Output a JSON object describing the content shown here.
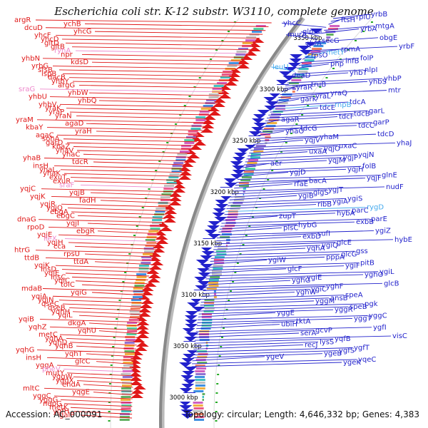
{
  "title": "Escherichia coli str. K-12 substr. W3110, complete genome",
  "accession_label": "Accession:",
  "accession": "AC_000091",
  "topology_label": "Topology:",
  "topology": "circular",
  "length_label": "Length:",
  "length": "4,646,332 bp",
  "genes_label": "Genes:",
  "genes": "4,383",
  "colors": {
    "forward": "#2222cc",
    "reverse": "#e01818",
    "forward_rna": "#44aaee",
    "reverse_rna": "#ee88cc",
    "backbone": "#888888",
    "tick": "#22aa22"
  },
  "scale_labels": [
    {
      "text": "3350 kbp"
    },
    {
      "text": "3300 kbp"
    },
    {
      "text": "3250 kbp"
    },
    {
      "text": "3200 kbp"
    },
    {
      "text": "3150 kbp"
    },
    {
      "text": "3100 kbp"
    },
    {
      "text": "3050 kbp"
    },
    {
      "text": "3000 kbp"
    }
  ],
  "reverse_labels": [
    {
      "text": "argR"
    },
    {
      "text": "ychB"
    },
    {
      "text": "dcuD"
    },
    {
      "text": "yhcG"
    },
    {
      "text": "yhcF"
    },
    {
      "text": "yhcD"
    },
    {
      "text": "gltD"
    },
    {
      "text": "gltB"
    },
    {
      "text": "ryhA"
    },
    {
      "text": "npr"
    },
    {
      "text": "yhbN"
    },
    {
      "text": "kdsD"
    },
    {
      "text": "yrbG"
    },
    {
      "text": "sfsB"
    },
    {
      "text": "ispB"
    },
    {
      "text": "dacB"
    },
    {
      "text": "yhbY"
    },
    {
      "text": "argG"
    },
    {
      "text": "sraG"
    },
    {
      "text": "yhbW"
    },
    {
      "text": "yhbU"
    },
    {
      "text": "yhbQ"
    },
    {
      "text": "yhbV"
    },
    {
      "text": "yraK"
    },
    {
      "text": "yraP"
    },
    {
      "text": "yraN"
    },
    {
      "text": "yraM"
    },
    {
      "text": "agaD"
    },
    {
      "text": "kbaY"
    },
    {
      "text": "yraH"
    },
    {
      "text": "agaC"
    },
    {
      "text": "sohA"
    },
    {
      "text": "garD"
    },
    {
      "text": "kbaZ"
    },
    {
      "text": "yhaV"
    },
    {
      "text": "yhaC"
    },
    {
      "text": "yhaB"
    },
    {
      "text": "tdcR"
    },
    {
      "text": "insH"
    },
    {
      "text": "yhaL"
    },
    {
      "text": "yhaK"
    },
    {
      "text": "exuT"
    },
    {
      "text": "exuR"
    },
    {
      "text": "sraF"
    },
    {
      "text": "yqjC"
    },
    {
      "text": "yqjB"
    },
    {
      "text": "yqjK"
    },
    {
      "text": "fadH"
    },
    {
      "text": "yqjR"
    },
    {
      "text": "yqjQ"
    },
    {
      "text": "ebgA"
    },
    {
      "text": "ebgC"
    },
    {
      "text": "dnaG"
    },
    {
      "text": "yqjI"
    },
    {
      "text": "rpoD"
    },
    {
      "text": "ebgR"
    },
    {
      "text": "yqjE"
    },
    {
      "text": "ileX"
    },
    {
      "text": "yqjH"
    },
    {
      "text": "cca"
    },
    {
      "text": "htrG"
    },
    {
      "text": "rpsU"
    },
    {
      "text": "ttdB"
    },
    {
      "text": "ttdA"
    },
    {
      "text": "yqiK"
    },
    {
      "text": "insD"
    },
    {
      "text": "yqiE"
    },
    {
      "text": "insC"
    },
    {
      "text": "yqiC"
    },
    {
      "text": "tolC"
    },
    {
      "text": "mdaB"
    },
    {
      "text": "yqiG"
    },
    {
      "text": "yqiA"
    },
    {
      "text": "yqiN"
    },
    {
      "text": "qseC"
    },
    {
      "text": "qseB"
    },
    {
      "text": "yqhH"
    },
    {
      "text": "yqiL"
    },
    {
      "text": "yqiB"
    },
    {
      "text": "dkgA"
    },
    {
      "text": "yqhZ"
    },
    {
      "text": "yqhU"
    },
    {
      "text": "metC"
    },
    {
      "text": "yqhA"
    },
    {
      "text": "yqhD"
    },
    {
      "text": "yqhB"
    },
    {
      "text": "yqhG"
    },
    {
      "text": "yqhT"
    },
    {
      "text": "insH"
    },
    {
      "text": "glcC"
    },
    {
      "text": "yggA"
    },
    {
      "text": "pheV"
    },
    {
      "text": "mutY"
    },
    {
      "text": "yggW"
    },
    {
      "text": "yggX"
    },
    {
      "text": "endA"
    },
    {
      "text": "mltC"
    },
    {
      "text": "yqgE"
    },
    {
      "text": "yggC"
    },
    {
      "text": "yggG"
    },
    {
      "text": "nupG"
    },
    {
      "text": "metK"
    },
    {
      "text": "ygfH"
    },
    {
      "text": "galP"
    }
  ],
  "forward_labels": [
    {
      "text": "yrbB"
    },
    {
      "text": "rplU"
    },
    {
      "text": "ftsH"
    },
    {
      "text": "yhcC"
    },
    {
      "text": "mtgA"
    },
    {
      "text": "yrbA"
    },
    {
      "text": "glmM"
    },
    {
      "text": "murA"
    },
    {
      "text": "obgE"
    },
    {
      "text": "secG"
    },
    {
      "text": "rbfA"
    },
    {
      "text": "yrbF"
    },
    {
      "text": "rpmA"
    },
    {
      "text": "metY"
    },
    {
      "text": "rpsO"
    },
    {
      "text": "folP"
    },
    {
      "text": "infB"
    },
    {
      "text": "pnp"
    },
    {
      "text": "leuU"
    },
    {
      "text": "nlpI"
    },
    {
      "text": "yhbT"
    },
    {
      "text": "deaD"
    },
    {
      "text": "yhbP"
    },
    {
      "text": "yhbS"
    },
    {
      "text": "truB"
    },
    {
      "text": "yraR"
    },
    {
      "text": "mtr"
    },
    {
      "text": "yraQ"
    },
    {
      "text": "yraL"
    },
    {
      "text": "garK"
    },
    {
      "text": "tdcA"
    },
    {
      "text": "rnpB"
    },
    {
      "text": "tdcE"
    },
    {
      "text": "garL"
    },
    {
      "text": "tdcB"
    },
    {
      "text": "tdcF"
    },
    {
      "text": "agaR"
    },
    {
      "text": "garP"
    },
    {
      "text": "tdcC"
    },
    {
      "text": "tdcG"
    },
    {
      "text": "yhaO"
    },
    {
      "text": "tdcD"
    },
    {
      "text": "yhaM"
    },
    {
      "text": "yqjV"
    },
    {
      "text": "yhaJ"
    },
    {
      "text": "uxaC"
    },
    {
      "text": "yqjO"
    },
    {
      "text": "uxaA"
    },
    {
      "text": "yqjN"
    },
    {
      "text": "ygjP"
    },
    {
      "text": "yqjM"
    },
    {
      "text": "aer"
    },
    {
      "text": "folB"
    },
    {
      "text": "yqjH"
    },
    {
      "text": "ygjD"
    },
    {
      "text": "glnE"
    },
    {
      "text": "yqjF"
    },
    {
      "text": "bacA"
    },
    {
      "text": "rfaE"
    },
    {
      "text": "nudF"
    },
    {
      "text": "ygjT"
    },
    {
      "text": "glgS"
    },
    {
      "text": "ygiB"
    },
    {
      "text": "ygiS"
    },
    {
      "text": "ygiA"
    },
    {
      "text": "ribB"
    },
    {
      "text": "rygD"
    },
    {
      "text": "parC"
    },
    {
      "text": "hybA"
    },
    {
      "text": "zupT"
    },
    {
      "text": "parE"
    },
    {
      "text": "exbB"
    },
    {
      "text": "hybG"
    },
    {
      "text": "plsC"
    },
    {
      "text": "ygiZ"
    },
    {
      "text": "sufI"
    },
    {
      "text": "exbD"
    },
    {
      "text": "hybE"
    },
    {
      "text": "glcE"
    },
    {
      "text": "ygiQ"
    },
    {
      "text": "yqhA"
    },
    {
      "text": "gss"
    },
    {
      "text": "glcG"
    },
    {
      "text": "pppA"
    },
    {
      "text": "ygiW"
    },
    {
      "text": "pitB"
    },
    {
      "text": "ygiF"
    },
    {
      "text": "glcF"
    },
    {
      "text": "ygiL"
    },
    {
      "text": "yghO"
    },
    {
      "text": "ygiE"
    },
    {
      "text": "yghG"
    },
    {
      "text": "glcB"
    },
    {
      "text": "yghF"
    },
    {
      "text": "ygiC"
    },
    {
      "text": "yghW"
    },
    {
      "text": "speA"
    },
    {
      "text": "ansB"
    },
    {
      "text": "yggM"
    },
    {
      "text": "pgk"
    },
    {
      "text": "speB"
    },
    {
      "text": "yggR"
    },
    {
      "text": "yggE"
    },
    {
      "text": "yggC"
    },
    {
      "text": "yggT"
    },
    {
      "text": "tktA"
    },
    {
      "text": "ubiH"
    },
    {
      "text": "ygfI"
    },
    {
      "text": "gcvP"
    },
    {
      "text": "serA"
    },
    {
      "text": "visC"
    },
    {
      "text": "yqfB"
    },
    {
      "text": "lysS"
    },
    {
      "text": "recJ"
    },
    {
      "text": "ygfT"
    },
    {
      "text": "ygfS"
    },
    {
      "text": "ygeB"
    },
    {
      "text": "ygeV"
    },
    {
      "text": "yqeC"
    },
    {
      "text": "ygeK"
    }
  ]
}
